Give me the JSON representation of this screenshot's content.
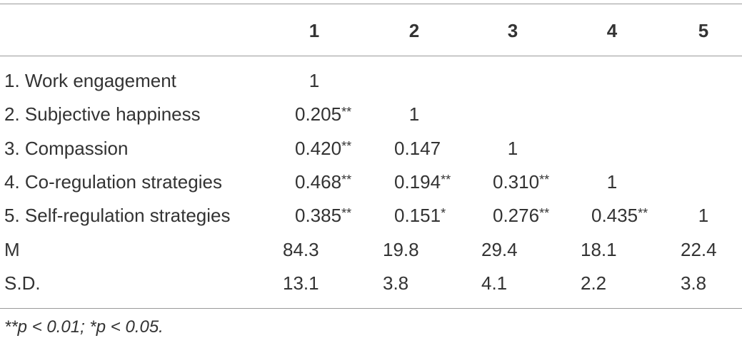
{
  "table": {
    "columns": [
      "1",
      "2",
      "3",
      "4",
      "5"
    ],
    "rows": [
      {
        "label": "1. Work engagement",
        "cells": [
          "1"
        ]
      },
      {
        "label": "2. Subjective happiness",
        "cells": [
          {
            "text": "0.205",
            "sig": "**"
          },
          "1"
        ]
      },
      {
        "label": "3. Compassion",
        "cells": [
          {
            "text": "0.420",
            "sig": "**"
          },
          "0.147",
          "1"
        ]
      },
      {
        "label": "4. Co-regulation strategies",
        "cells": [
          {
            "text": "0.468",
            "sig": "**"
          },
          {
            "text": "0.194",
            "sig": "**"
          },
          {
            "text": "0.310",
            "sig": "**"
          },
          "1"
        ]
      },
      {
        "label": "5. Self-regulation strategies",
        "cells": [
          {
            "text": "0.385",
            "sig": "**"
          },
          {
            "text": "0.151",
            "sig": "*"
          },
          {
            "text": "0.276",
            "sig": "**"
          },
          {
            "text": "0.435",
            "sig": "**"
          },
          "1"
        ]
      },
      {
        "label": "M",
        "cells": [
          "84.3",
          "19.8",
          "29.4",
          "18.1",
          "22.4"
        ]
      },
      {
        "label": "S.D.",
        "cells": [
          "13.1",
          "3.8",
          "4.1",
          "2.2",
          "3.8"
        ]
      }
    ],
    "footnote": "**p < 0.01; *p < 0.05."
  }
}
